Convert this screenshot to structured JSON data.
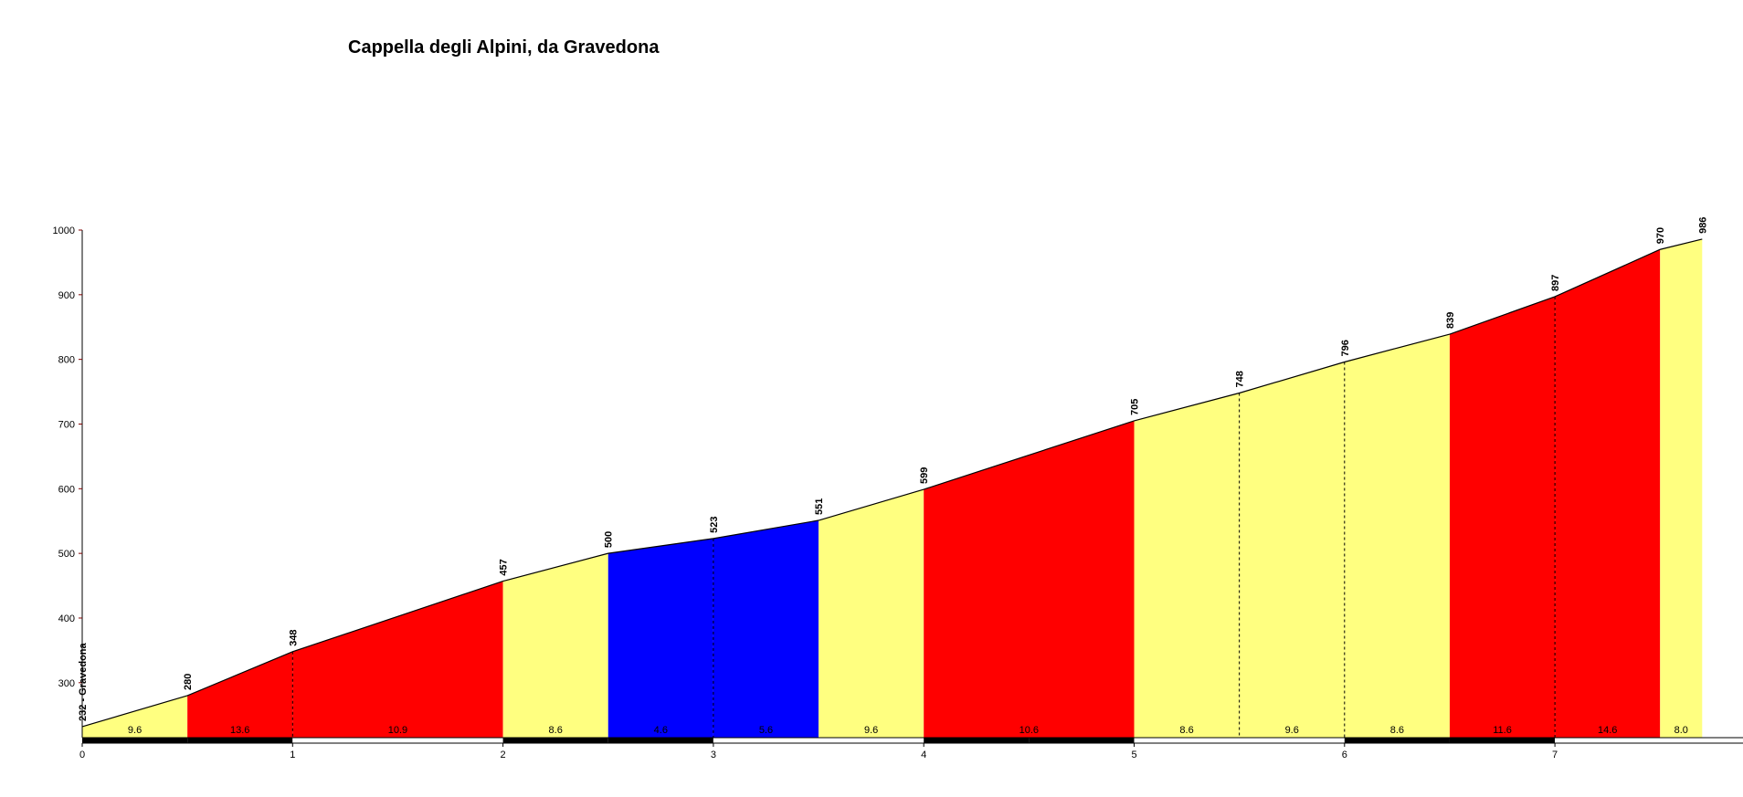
{
  "chart_data": {
    "type": "area",
    "title": "Cappella degli Alpini, da Gravedona",
    "xlabel": "",
    "ylabel": "",
    "xlim": [
      0,
      7.9
    ],
    "ylim": [
      215,
      1000
    ],
    "x_ticks": [
      "0",
      "1",
      "2",
      "3",
      "4",
      "5",
      "6",
      "7"
    ],
    "y_ticks": [
      "300",
      "400",
      "500",
      "600",
      "700",
      "800",
      "900",
      "1000"
    ],
    "grid": false,
    "colors": {
      "easy": "#ffff80",
      "hard": "#ff0000",
      "moderate": "#0000ff",
      "outline": "#000000",
      "axis": "#000000",
      "tick": "#800000"
    },
    "points": [
      {
        "x": 0.0,
        "y": 232,
        "label": "232 - Gravedona"
      },
      {
        "x": 0.5,
        "y": 280,
        "label": "280"
      },
      {
        "x": 1.0,
        "y": 348,
        "label": "348"
      },
      {
        "x": 2.0,
        "y": 457,
        "label": "457"
      },
      {
        "x": 2.5,
        "y": 500,
        "label": "500"
      },
      {
        "x": 3.0,
        "y": 523,
        "label": "523"
      },
      {
        "x": 3.5,
        "y": 551,
        "label": "551"
      },
      {
        "x": 4.0,
        "y": 599,
        "label": "599"
      },
      {
        "x": 5.0,
        "y": 705,
        "label": "705"
      },
      {
        "x": 5.5,
        "y": 748,
        "label": "748"
      },
      {
        "x": 6.0,
        "y": 796,
        "label": "796"
      },
      {
        "x": 6.5,
        "y": 839,
        "label": "839"
      },
      {
        "x": 7.0,
        "y": 897,
        "label": "897"
      },
      {
        "x": 7.5,
        "y": 970,
        "label": "970"
      },
      {
        "x": 7.7,
        "y": 986,
        "label": "986"
      }
    ],
    "segments": [
      {
        "x0": 0.0,
        "x1": 0.5,
        "gradient": "9.6",
        "color": "easy"
      },
      {
        "x0": 0.5,
        "x1": 1.0,
        "gradient": "13.6",
        "color": "hard"
      },
      {
        "x0": 1.0,
        "x1": 2.0,
        "gradient": "10.9",
        "color": "hard"
      },
      {
        "x0": 2.0,
        "x1": 2.5,
        "gradient": "8.6",
        "color": "easy"
      },
      {
        "x0": 2.5,
        "x1": 3.0,
        "gradient": "4.6",
        "color": "moderate"
      },
      {
        "x0": 3.0,
        "x1": 3.5,
        "gradient": "5.6",
        "color": "moderate"
      },
      {
        "x0": 3.5,
        "x1": 4.0,
        "gradient": "9.6",
        "color": "easy"
      },
      {
        "x0": 4.0,
        "x1": 5.0,
        "gradient": "10.6",
        "color": "hard"
      },
      {
        "x0": 5.0,
        "x1": 5.5,
        "gradient": "8.6",
        "color": "easy"
      },
      {
        "x0": 5.5,
        "x1": 6.0,
        "gradient": "9.6",
        "color": "easy"
      },
      {
        "x0": 6.0,
        "x1": 6.5,
        "gradient": "8.6",
        "color": "easy"
      },
      {
        "x0": 6.5,
        "x1": 7.0,
        "gradient": "11.6",
        "color": "hard"
      },
      {
        "x0": 7.0,
        "x1": 7.5,
        "gradient": "14.6",
        "color": "hard"
      },
      {
        "x0": 7.5,
        "x1": 7.7,
        "gradient": "8.0",
        "color": "easy"
      }
    ],
    "dashed_at": [
      1.0,
      3.0,
      5.5,
      6.0,
      7.0
    ]
  }
}
